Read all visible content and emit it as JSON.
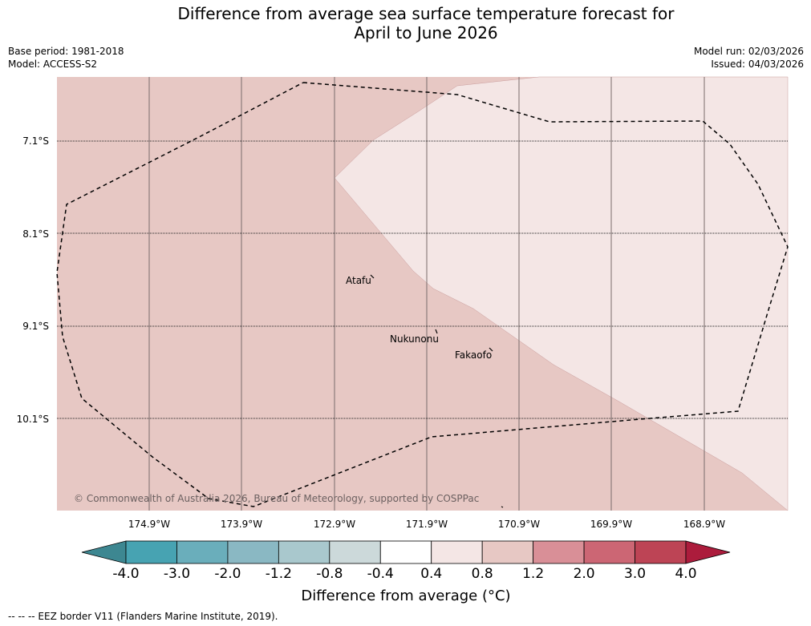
{
  "title": {
    "line1": "Difference from average sea surface temperature forecast for",
    "line2": "April to June 2026"
  },
  "meta": {
    "base_period": "Base period: 1981-2018",
    "model": "Model: ACCESS-S2",
    "model_run": "Model run: 02/03/2026",
    "issued": "Issued: 04/03/2026"
  },
  "map": {
    "lat_labels": [
      "7.1°S",
      "8.1°S",
      "9.1°S",
      "10.1°S"
    ],
    "lon_labels": [
      "174.9°W",
      "173.9°W",
      "172.9°W",
      "171.9°W",
      "170.9°W",
      "169.9°W",
      "168.9°W"
    ],
    "places": [
      {
        "name": "Atafu"
      },
      {
        "name": "Nukunonu"
      },
      {
        "name": "Fakaofo"
      }
    ],
    "copyright": "© Commonwealth of Australia 2026, Bureau of Meteorology, supported by COSPPac",
    "colors": {
      "anom_0_8_to_1_2": "#e7c8c4",
      "anom_0_4_to_0_8": "#f4e6e5"
    }
  },
  "colorbar": {
    "ticks": [
      "-4.0",
      "-3.0",
      "-2.0",
      "-1.2",
      "-0.8",
      "-0.4",
      "0.4",
      "0.8",
      "1.2",
      "2.0",
      "3.0",
      "4.0"
    ],
    "colors": [
      "#3d8791",
      "#47a3b2",
      "#6aaebb",
      "#8ab8c3",
      "#a9c8cd",
      "#ccd9da",
      "#ffffff",
      "#f4e6e5",
      "#e7c8c4",
      "#d98f97",
      "#cc6674",
      "#bd4455",
      "#ac1c3c"
    ],
    "label": "Difference from average (°C)"
  },
  "footnote": "--  --  -- EEZ border V11 (Flanders Marine Institute, 2019)."
}
